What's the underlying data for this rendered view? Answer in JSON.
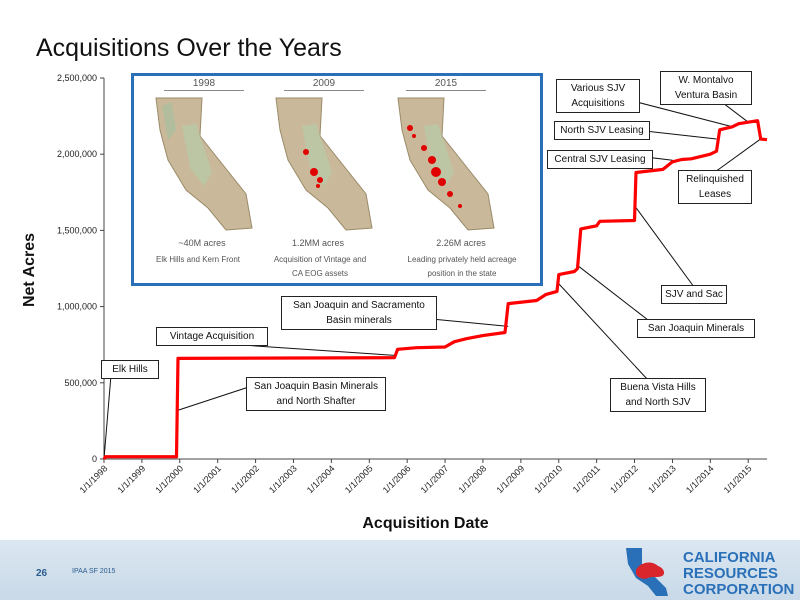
{
  "slide": {
    "title": "Acquisitions Over the Years"
  },
  "footer": {
    "page": "26",
    "event": "IPAA SF 2015"
  },
  "logo": {
    "line1": "CALIFORNIA",
    "line2": "RESOURCES",
    "line3": "CORPORATION"
  },
  "inset": {
    "years": [
      "1998",
      "2009",
      "2015"
    ],
    "acres": [
      "~40M acres",
      "1.2MM acres",
      "2.26M acres"
    ],
    "captions": [
      [
        "Elk Hills and Kern Front"
      ],
      [
        "Acquisition of Vintage and",
        "CA EOG assets"
      ],
      [
        "Leading privately held acreage",
        "position in the state"
      ]
    ]
  },
  "chart_data": {
    "type": "line",
    "xlabel": "Acquisition Date",
    "ylabel": "Net Acres",
    "ylim": [
      0,
      2500000
    ],
    "xlim": [
      "1998-01-01",
      "2015-07-01"
    ],
    "y_ticks": [
      "0",
      "500,000",
      "1,000,000",
      "1,500,000",
      "2,000,000",
      "2,500,000"
    ],
    "x_ticks": [
      "1/1/1998",
      "1/1/1999",
      "1/1/2000",
      "1/1/2001",
      "1/1/2002",
      "1/1/2003",
      "1/1/2004",
      "1/1/2005",
      "1/1/2006",
      "1/1/2007",
      "1/1/2008",
      "1/1/2009",
      "1/1/2010",
      "1/1/2011",
      "1/1/2012",
      "1/1/2013",
      "1/1/2014",
      "1/1/2015"
    ],
    "series": [
      {
        "color": "#ff0000",
        "points": [
          [
            "1998-01-01",
            0
          ],
          [
            "1998-01-15",
            15000
          ],
          [
            "1999-12-01",
            15000
          ],
          [
            "1999-12-15",
            660000
          ],
          [
            "2005-09-01",
            665000
          ],
          [
            "2005-10-01",
            720000
          ],
          [
            "2006-04-01",
            730000
          ],
          [
            "2007-01-01",
            735000
          ],
          [
            "2007-04-01",
            770000
          ],
          [
            "2007-08-01",
            790000
          ],
          [
            "2008-01-01",
            810000
          ],
          [
            "2008-08-01",
            830000
          ],
          [
            "2008-09-01",
            1020000
          ],
          [
            "2009-06-01",
            1040000
          ],
          [
            "2009-09-01",
            1080000
          ],
          [
            "2009-12-15",
            1100000
          ],
          [
            "2010-01-01",
            1210000
          ],
          [
            "2010-06-01",
            1230000
          ],
          [
            "2010-07-01",
            1250000
          ],
          [
            "2010-08-01",
            1510000
          ],
          [
            "2011-01-01",
            1530000
          ],
          [
            "2011-02-01",
            1560000
          ],
          [
            "2012-01-01",
            1565000
          ],
          [
            "2012-01-15",
            1880000
          ],
          [
            "2012-10-01",
            1900000
          ],
          [
            "2013-01-01",
            1950000
          ],
          [
            "2013-04-01",
            1965000
          ],
          [
            "2013-07-01",
            1970000
          ],
          [
            "2014-01-01",
            2000000
          ],
          [
            "2014-03-01",
            2020000
          ],
          [
            "2014-04-01",
            2160000
          ],
          [
            "2014-08-01",
            2180000
          ],
          [
            "2014-10-01",
            2200000
          ],
          [
            "2015-01-01",
            2210000
          ],
          [
            "2015-04-01",
            2220000
          ],
          [
            "2015-05-01",
            2100000
          ],
          [
            "2015-07-01",
            2095000
          ]
        ]
      }
    ],
    "annotations": [
      {
        "text": "Elk Hills",
        "date": "1998-01-01",
        "value": 0
      },
      {
        "text": "San Joaquin Basin Minerals and North Shafter",
        "date": "1999-12-15",
        "value": 320000
      },
      {
        "text": "Vintage Acquisition",
        "date": "2005-09-01",
        "value": 680000
      },
      {
        "text": "San Joaquin and Sacramento Basin minerals",
        "date": "2008-09-01",
        "value": 870000
      },
      {
        "text": "Buena Vista Hills and North SJV",
        "date": "2010-01-01",
        "value": 1150000
      },
      {
        "text": "San Joaquin Minerals",
        "date": "2010-07-01",
        "value": 1270000
      },
      {
        "text": "SJV and Sac",
        "date": "2012-01-15",
        "value": 1650000
      },
      {
        "text": "Central SJV Leasing",
        "date": "2013-01-01",
        "value": 1960000
      },
      {
        "text": "North SJV Leasing",
        "date": "2014-03-01",
        "value": 2100000
      },
      {
        "text": "Various SJV Acquisitions",
        "date": "2014-08-01",
        "value": 2180000
      },
      {
        "text": "W. Montalvo Ventura Basin",
        "date": "2015-01-01",
        "value": 2210000
      },
      {
        "text": "Relinquished Leases",
        "date": "2015-05-01",
        "value": 2100000
      }
    ]
  }
}
